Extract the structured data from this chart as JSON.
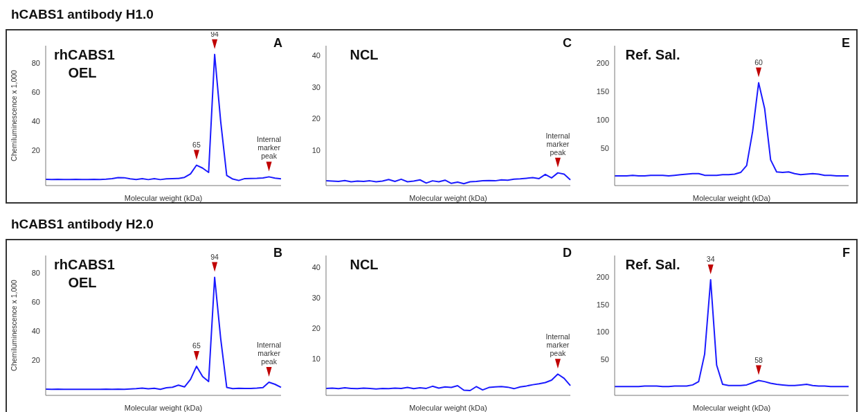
{
  "chart_data": [
    {
      "type": "line",
      "title": "rhCABS1 OEL",
      "xlabel": "Molecular weight (kDa)",
      "ylabel": "Chemiluminescence x 1,000",
      "tick_labels": "y",
      "color": "#1a1aff",
      "categories": [
        null,
        null,
        null,
        null,
        null,
        null,
        null,
        null,
        null,
        null,
        null,
        null,
        null,
        null,
        null,
        null,
        null,
        null,
        null,
        null,
        null,
        null,
        null,
        null,
        null,
        null,
        null,
        null,
        null,
        null,
        null,
        null,
        null,
        null,
        null,
        null,
        null,
        null,
        null,
        null
      ],
      "values": [
        0.3,
        0.2,
        0.3,
        0.1,
        0.2,
        0.3,
        0.2,
        0.1,
        0.3,
        0.2,
        0.4,
        0.8,
        1.5,
        1.4,
        0.6,
        0.2,
        0.8,
        0.1,
        0.7,
        0.1,
        0.6,
        0.8,
        0.9,
        1.6,
        4,
        10,
        8,
        5,
        86,
        40,
        3,
        0.5,
        -0.5,
        0.8,
        0.9,
        1,
        1.2,
        2,
        1.1,
        0.6
      ],
      "ylim": [
        -4,
        92
      ],
      "yticks": [
        20,
        40,
        60,
        80
      ],
      "annotations": [
        "A",
        "hCABS1 antibody H1.0",
        {
          "text": "65",
          "y": 10
        },
        {
          "text": "94",
          "y": 86
        },
        {
          "text": "Internal marker peak",
          "y": 2
        }
      ]
    },
    {
      "type": "line",
      "title": "NCL",
      "xlabel": "Molecular weight (kDa)",
      "tick_labels": "y",
      "color": "#1a1aff",
      "categories": [
        null,
        null,
        null,
        null,
        null,
        null,
        null,
        null,
        null,
        null,
        null,
        null,
        null,
        null,
        null,
        null,
        null,
        null,
        null,
        null,
        null,
        null,
        null,
        null,
        null,
        null,
        null,
        null,
        null,
        null,
        null,
        null,
        null,
        null,
        null,
        null,
        null,
        null,
        null,
        null
      ],
      "values": [
        0.5,
        0.4,
        0.3,
        0.6,
        0.2,
        0.4,
        0.3,
        0.5,
        0.2,
        0.4,
        0.9,
        0.3,
        1,
        0.2,
        0.4,
        0.8,
        -0.2,
        0.5,
        0.2,
        0.7,
        -0.3,
        0.1,
        -0.4,
        0.2,
        0.3,
        0.5,
        0.6,
        0.5,
        0.8,
        0.7,
        1,
        1.1,
        1.3,
        1.5,
        1.2,
        2.5,
        1.4,
        3,
        2.6,
        0.8
      ],
      "ylim": [
        -1,
        43
      ],
      "yticks": [
        10,
        20,
        30,
        40
      ],
      "annotations": [
        "C",
        {
          "text": "Internal marker peak",
          "y": 3
        }
      ]
    },
    {
      "type": "line",
      "title": "Ref. Sal.",
      "xlabel": "Molecular weight (kDa)",
      "tick_labels": "y",
      "color": "#1a1aff",
      "categories": [
        null,
        null,
        null,
        null,
        null,
        null,
        null,
        null,
        null,
        null,
        null,
        null,
        null,
        null,
        null,
        null,
        null,
        null,
        null,
        null,
        null,
        null,
        null,
        null,
        null,
        null,
        null,
        null,
        null,
        null,
        null,
        null,
        null,
        null,
        null,
        null,
        null,
        null,
        null,
        null
      ],
      "values": [
        2,
        2,
        2,
        3,
        2,
        2,
        3,
        3,
        3,
        2,
        3,
        4,
        5,
        6,
        6,
        3,
        3,
        3,
        4,
        4,
        5,
        8,
        20,
        80,
        165,
        120,
        30,
        9,
        8,
        9,
        6,
        4,
        5,
        6,
        5,
        3,
        3,
        2,
        2,
        2
      ],
      "ylim": [
        -15,
        230
      ],
      "yticks": [
        50,
        100,
        150,
        200
      ],
      "annotations": [
        "E",
        {
          "text": "60",
          "y": 165
        }
      ]
    },
    {
      "type": "line",
      "title": "rhCABS1 OEL",
      "xlabel": "Molecular weight (kDa)",
      "ylabel": "Chemiluminescence x 1,000",
      "tick_labels": "y",
      "color": "#1a1aff",
      "categories": [
        null,
        null,
        null,
        null,
        null,
        null,
        null,
        null,
        null,
        null,
        null,
        null,
        null,
        null,
        null,
        null,
        null,
        null,
        null,
        null,
        null,
        null,
        null,
        null,
        null,
        null,
        null,
        null,
        null,
        null,
        null,
        null,
        null,
        null,
        null,
        null,
        null,
        null,
        null,
        null
      ],
      "values": [
        0.3,
        0.2,
        0.3,
        0.2,
        0.1,
        0.2,
        0.1,
        0.2,
        0.1,
        0.2,
        0.3,
        0.2,
        0.3,
        0.2,
        0.4,
        0.6,
        1,
        0.5,
        0.9,
        0.2,
        1.2,
        1.6,
        3,
        1.8,
        7,
        16,
        9,
        5.5,
        77,
        35,
        1.5,
        0.6,
        0.9,
        0.7,
        0.8,
        1,
        1.3,
        5,
        3.6,
        1.5
      ],
      "ylim": [
        -4,
        92
      ],
      "yticks": [
        20,
        40,
        60,
        80
      ],
      "annotations": [
        "B",
        "hCABS1 antibody H2.0",
        {
          "text": "65",
          "y": 16
        },
        {
          "text": "94",
          "y": 77
        },
        {
          "text": "Internal marker peak",
          "y": 5
        }
      ]
    },
    {
      "type": "line",
      "title": "NCL",
      "xlabel": "Molecular weight (kDa)",
      "tick_labels": "y",
      "color": "#1a1aff",
      "categories": [
        null,
        null,
        null,
        null,
        null,
        null,
        null,
        null,
        null,
        null,
        null,
        null,
        null,
        null,
        null,
        null,
        null,
        null,
        null,
        null,
        null,
        null,
        null,
        null,
        null,
        null,
        null,
        null,
        null,
        null,
        null,
        null,
        null,
        null,
        null,
        null,
        null,
        null,
        null,
        null
      ],
      "values": [
        0.3,
        0.4,
        0.2,
        0.5,
        0.3,
        0.2,
        0.4,
        0.3,
        0.1,
        0.3,
        0.2,
        0.4,
        0.3,
        0.6,
        0.2,
        0.5,
        0.3,
        1,
        0.4,
        0.8,
        0.6,
        1.2,
        -0.3,
        -0.4,
        0.9,
        -0.2,
        0.6,
        0.8,
        0.9,
        0.7,
        0.2,
        0.8,
        1.1,
        1.5,
        1.8,
        2.2,
        3,
        5,
        3.6,
        1.2
      ],
      "ylim": [
        -2,
        44
      ],
      "yticks": [
        10,
        20,
        30,
        40
      ],
      "annotations": [
        "D",
        {
          "text": "Internal marker peak",
          "y": 5
        }
      ]
    },
    {
      "type": "line",
      "title": "Ref. Sal.",
      "xlabel": "Molecular weight (kDa)",
      "tick_labels": "y",
      "color": "#1a1aff",
      "categories": [
        null,
        null,
        null,
        null,
        null,
        null,
        null,
        null,
        null,
        null,
        null,
        null,
        null,
        null,
        null,
        null,
        null,
        null,
        null,
        null,
        null,
        null,
        null,
        null,
        null,
        null,
        null,
        null,
        null,
        null,
        null,
        null,
        null,
        null,
        null,
        null,
        null,
        null,
        null,
        null
      ],
      "values": [
        1,
        1,
        1,
        1,
        1,
        2,
        2,
        2,
        1,
        1,
        2,
        2,
        2,
        4,
        10,
        60,
        195,
        40,
        5,
        3,
        3,
        3,
        4,
        8,
        12,
        10,
        7,
        5,
        4,
        3,
        3,
        4,
        5,
        3,
        2,
        2,
        1,
        1,
        1,
        1
      ],
      "ylim": [
        -15,
        239
      ],
      "yticks": [
        50,
        100,
        150,
        200
      ],
      "annotations": [
        "F",
        {
          "text": "58",
          "y": 12
        },
        {
          "text": "34",
          "y": 195
        }
      ]
    }
  ]
}
